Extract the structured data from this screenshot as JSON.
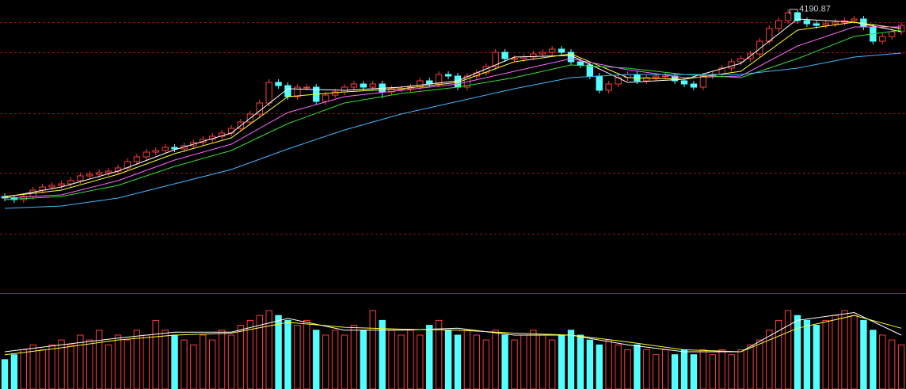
{
  "chart_data": {
    "type": "candlestick",
    "up_color": "#ff3b3b",
    "down_color": "#54ffff",
    "grid_color": "#8a1a1a",
    "ylim": [
      2400,
      4250
    ],
    "grid_levels": [
      4110,
      3920,
      3535,
      3160,
      2775
    ],
    "open": [
      3010,
      3000,
      2990,
      3010,
      3050,
      3070,
      3080,
      3090,
      3110,
      3140,
      3150,
      3160,
      3170,
      3190,
      3230,
      3260,
      3290,
      3300,
      3320,
      3310,
      3330,
      3350,
      3370,
      3390,
      3410,
      3440,
      3480,
      3530,
      3600,
      3730,
      3710,
      3640,
      3700,
      3700,
      3610,
      3650,
      3670,
      3700,
      3720,
      3700,
      3720,
      3670,
      3690,
      3690,
      3700,
      3740,
      3720,
      3780,
      3770,
      3700,
      3770,
      3790,
      3830,
      3920,
      3880,
      3880,
      3890,
      3910,
      3920,
      3940,
      3920,
      3860,
      3840,
      3770,
      3680,
      3720,
      3760,
      3780,
      3740,
      3760,
      3770,
      3770,
      3740,
      3720,
      3700,
      3770,
      3780,
      3820,
      3860,
      3880,
      3910,
      3990,
      4070,
      4120,
      4170,
      4120,
      4100,
      4090,
      4100,
      4110,
      4120,
      4130,
      4080,
      3990,
      4020,
      4050
    ],
    "high": [
      3030,
      3020,
      3030,
      3070,
      3090,
      3100,
      3110,
      3130,
      3160,
      3170,
      3180,
      3190,
      3210,
      3250,
      3280,
      3310,
      3320,
      3340,
      3340,
      3350,
      3370,
      3390,
      3410,
      3430,
      3460,
      3500,
      3550,
      3620,
      3750,
      3750,
      3730,
      3720,
      3720,
      3720,
      3670,
      3690,
      3720,
      3740,
      3740,
      3740,
      3740,
      3710,
      3710,
      3720,
      3760,
      3760,
      3800,
      3800,
      3790,
      3790,
      3810,
      3850,
      3940,
      3940,
      3900,
      3910,
      3930,
      3940,
      3960,
      3960,
      3940,
      3880,
      3860,
      3790,
      3740,
      3780,
      3800,
      3800,
      3780,
      3790,
      3790,
      3790,
      3760,
      3740,
      3790,
      3800,
      3840,
      3880,
      3900,
      3930,
      4010,
      4090,
      4140,
      4190.87,
      4190,
      4140,
      4120,
      4120,
      4130,
      4140,
      4150,
      4150,
      4100,
      4040,
      4070,
      4110
    ],
    "low": [
      2980,
      2970,
      2970,
      2990,
      3030,
      3050,
      3060,
      3070,
      3090,
      3120,
      3130,
      3140,
      3150,
      3170,
      3210,
      3240,
      3270,
      3280,
      3290,
      3290,
      3310,
      3330,
      3350,
      3370,
      3390,
      3420,
      3460,
      3510,
      3580,
      3690,
      3620,
      3620,
      3680,
      3590,
      3590,
      3630,
      3650,
      3680,
      3680,
      3680,
      3630,
      3650,
      3670,
      3670,
      3680,
      3700,
      3700,
      3750,
      3680,
      3680,
      3750,
      3770,
      3810,
      3860,
      3860,
      3860,
      3870,
      3890,
      3900,
      3900,
      3840,
      3820,
      3750,
      3660,
      3660,
      3700,
      3740,
      3720,
      3720,
      3740,
      3750,
      3720,
      3700,
      3680,
      3680,
      3750,
      3760,
      3800,
      3840,
      3860,
      3890,
      3970,
      4050,
      4100,
      4100,
      4080,
      4070,
      4070,
      4080,
      4090,
      4100,
      4060,
      3970,
      3970,
      4000,
      4030
    ],
    "close": [
      3000,
      2990,
      3010,
      3050,
      3070,
      3080,
      3090,
      3110,
      3140,
      3150,
      3160,
      3170,
      3190,
      3230,
      3260,
      3290,
      3300,
      3320,
      3310,
      3330,
      3350,
      3370,
      3390,
      3410,
      3440,
      3480,
      3530,
      3600,
      3730,
      3710,
      3640,
      3700,
      3700,
      3610,
      3650,
      3670,
      3700,
      3720,
      3700,
      3720,
      3670,
      3690,
      3690,
      3700,
      3740,
      3720,
      3780,
      3770,
      3700,
      3770,
      3790,
      3830,
      3920,
      3880,
      3880,
      3890,
      3910,
      3920,
      3940,
      3920,
      3860,
      3840,
      3770,
      3680,
      3720,
      3760,
      3780,
      3740,
      3760,
      3770,
      3770,
      3740,
      3720,
      3700,
      3770,
      3780,
      3820,
      3860,
      3880,
      3910,
      3990,
      4070,
      4120,
      4170,
      4120,
      4100,
      4090,
      4100,
      4110,
      4120,
      4130,
      4080,
      3990,
      4020,
      4050,
      4090
    ],
    "volume": [
      30,
      35,
      40,
      45,
      40,
      45,
      50,
      45,
      55,
      50,
      60,
      45,
      55,
      50,
      60,
      55,
      70,
      60,
      55,
      50,
      45,
      55,
      50,
      60,
      55,
      65,
      70,
      75,
      80,
      75,
      70,
      65,
      70,
      60,
      55,
      60,
      55,
      65,
      60,
      80,
      70,
      60,
      55,
      60,
      55,
      65,
      70,
      60,
      55,
      60,
      55,
      50,
      60,
      55,
      50,
      55,
      60,
      55,
      50,
      55,
      60,
      55,
      50,
      45,
      50,
      45,
      40,
      45,
      40,
      35,
      40,
      35,
      40,
      35,
      40,
      35,
      40,
      35,
      40,
      45,
      50,
      60,
      70,
      80,
      75,
      70,
      65,
      70,
      75,
      80,
      75,
      70,
      60,
      55,
      50,
      45
    ],
    "volume_ylim": [
      0,
      97
    ],
    "annotation": {
      "index": 83
    },
    "ma_series": [
      {
        "color": "#ffffff",
        "x": [
          0,
          6,
          12,
          18,
          24,
          30,
          36,
          42,
          48,
          54,
          60,
          66,
          72,
          78,
          84,
          90,
          95
        ],
        "values": [
          3005,
          3070,
          3170,
          3305,
          3410,
          3690,
          3680,
          3700,
          3740,
          3890,
          3900,
          3730,
          3750,
          3850,
          4130,
          4110,
          4050
        ]
      },
      {
        "color": "#ffff33",
        "x": [
          0,
          6,
          12,
          18,
          24,
          30,
          36,
          42,
          48,
          54,
          60,
          66,
          72,
          78,
          84,
          90,
          95
        ],
        "values": [
          3010,
          3050,
          3150,
          3280,
          3380,
          3640,
          3670,
          3690,
          3730,
          3860,
          3910,
          3760,
          3750,
          3800,
          4060,
          4110,
          4070
        ]
      },
      {
        "color": "#ff66ff",
        "x": [
          0,
          6,
          12,
          18,
          24,
          30,
          36,
          42,
          48,
          54,
          60,
          66,
          72,
          78,
          84,
          90,
          95
        ],
        "values": [
          3000,
          3020,
          3110,
          3240,
          3340,
          3540,
          3640,
          3680,
          3720,
          3800,
          3880,
          3810,
          3760,
          3770,
          3960,
          4080,
          4080
        ]
      },
      {
        "color": "#33dd33",
        "x": [
          0,
          6,
          12,
          18,
          24,
          30,
          36,
          42,
          48,
          54,
          60,
          66,
          72,
          78,
          84,
          90,
          95
        ],
        "values": [
          2990,
          3010,
          3080,
          3200,
          3300,
          3470,
          3600,
          3660,
          3700,
          3760,
          3840,
          3820,
          3780,
          3760,
          3880,
          4020,
          4060
        ]
      },
      {
        "color": "#3fb8ff",
        "x": [
          0,
          6,
          12,
          18,
          24,
          30,
          36,
          42,
          48,
          54,
          60,
          66,
          72,
          78,
          84,
          90,
          95
        ],
        "values": [
          2935,
          2950,
          3000,
          3090,
          3180,
          3310,
          3430,
          3530,
          3610,
          3690,
          3760,
          3780,
          3780,
          3780,
          3820,
          3890,
          3915
        ]
      }
    ],
    "volume_ma_series": [
      {
        "color": "#ffffff",
        "x": [
          0,
          6,
          12,
          18,
          24,
          30,
          36,
          42,
          48,
          54,
          60,
          66,
          72,
          78,
          84,
          90,
          95
        ],
        "values": [
          38,
          45,
          52,
          58,
          58,
          72,
          60,
          60,
          62,
          55,
          55,
          45,
          38,
          38,
          70,
          78,
          55
        ]
      },
      {
        "color": "#ffff33",
        "x": [
          0,
          6,
          12,
          18,
          24,
          30,
          36,
          42,
          48,
          54,
          60,
          66,
          72,
          78,
          84,
          90,
          95
        ],
        "values": [
          35,
          42,
          50,
          55,
          57,
          68,
          63,
          61,
          60,
          57,
          55,
          48,
          40,
          38,
          62,
          75,
          62
        ]
      }
    ]
  }
}
